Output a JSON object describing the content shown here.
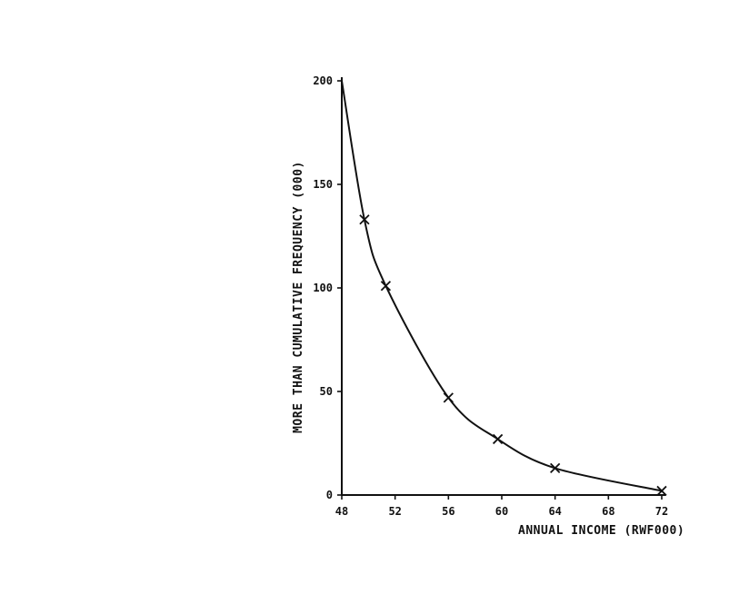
{
  "chart_data": {
    "type": "line",
    "xlabel": "ANNUAL INCOME (RWF000)",
    "ylabel": "MORE THAN CUMULATIVE FREQUENCY (000)",
    "xlim": [
      48,
      72
    ],
    "ylim": [
      0,
      200
    ],
    "x_ticks": [
      48,
      52,
      56,
      60,
      64,
      68,
      72
    ],
    "y_ticks": [
      0,
      50,
      100,
      150,
      200
    ],
    "grid": false,
    "series": [
      {
        "marker": "x",
        "color": "#111111",
        "x": [
          49.7,
          51.3,
          56,
          59.7,
          64,
          72
        ],
        "y": [
          133,
          101,
          47,
          27,
          13,
          2
        ]
      }
    ],
    "curve_start": {
      "x": 48,
      "y": 200
    }
  }
}
